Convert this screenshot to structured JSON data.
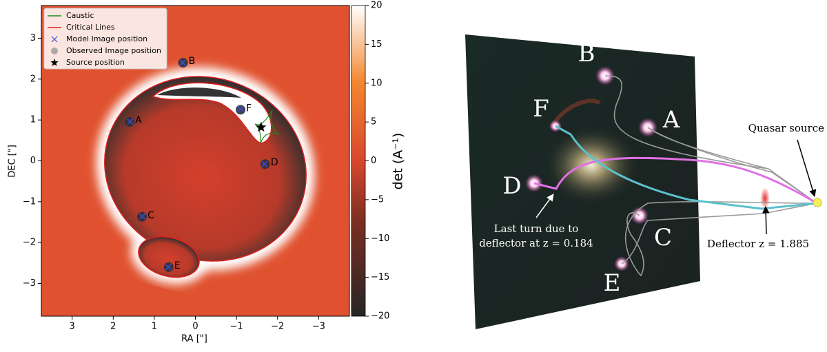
{
  "chart_data": {
    "type": "scatter",
    "xlabel": "RA [\"]",
    "ylabel": "DEC [\"]",
    "xlim": [
      3.75,
      -3.75
    ],
    "ylim": [
      -3.8,
      3.8
    ],
    "xticks": [
      3,
      2,
      1,
      0,
      {
        "value": -1,
        "label": "−1"
      },
      {
        "value": -2,
        "label": "−2"
      },
      {
        "value": -3,
        "label": "−3"
      }
    ],
    "yticks": [
      3,
      2,
      1,
      0,
      {
        "value": -1,
        "label": "−1"
      },
      {
        "value": -2,
        "label": "−2"
      },
      {
        "value": -3,
        "label": "−3"
      }
    ],
    "colorbar": {
      "label": "det  (A⁻¹)",
      "lim": [
        -20,
        20
      ],
      "ticks": [
        {
          "value": -20,
          "label": "−20"
        },
        {
          "value": -15,
          "label": "−15"
        },
        {
          "value": -10,
          "label": "−10"
        },
        {
          "value": -5,
          "label": "−5"
        },
        0,
        5,
        10,
        15,
        20
      ]
    },
    "lines": [
      {
        "name": "Caustic",
        "color": "#1a8a1a"
      },
      {
        "name": "Critical Lines",
        "color": "#e41e1e"
      }
    ],
    "series": [
      {
        "name": "Model Image position",
        "color": "#3a4fd6",
        "marker": "x",
        "x": [
          1.59,
          0.31,
          1.29,
          -1.68,
          0.66,
          -1.1
        ],
        "y": [
          0.96,
          2.4,
          -1.36,
          -0.08,
          -2.6,
          1.27
        ]
      },
      {
        "name": "Observed Image position",
        "color": "#2c2f3c",
        "marker": "o",
        "x": [
          1.6,
          0.3,
          1.3,
          -1.7,
          0.65,
          -1.1
        ],
        "y": [
          0.95,
          2.4,
          -1.37,
          -0.08,
          -2.6,
          1.25
        ],
        "labels": [
          "A",
          "B",
          "C",
          "D",
          "E",
          "F"
        ]
      },
      {
        "name": "Source position",
        "color": "#000000",
        "marker": "*",
        "x": [
          -1.6
        ],
        "y": [
          0.82
        ]
      }
    ]
  },
  "illustration": {
    "images": [
      "B",
      "A",
      "F",
      "D",
      "C",
      "E"
    ],
    "source_label": "Quasar source",
    "deflector_label": "Deflector z = 1.885",
    "turn_label": [
      "Last turn due to",
      "deflector at z = 0.184"
    ]
  }
}
